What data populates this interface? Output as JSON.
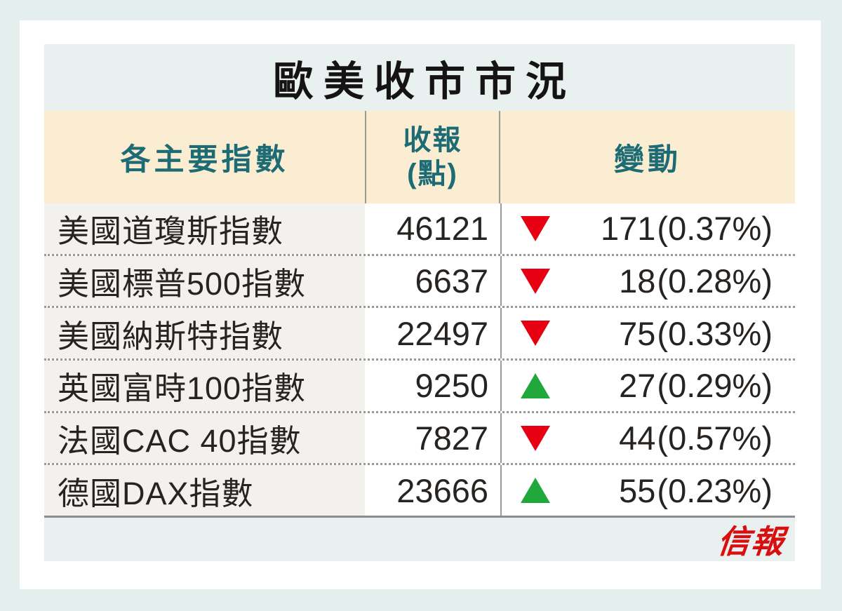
{
  "title": "歐美收市市況",
  "table": {
    "headers": {
      "index": "各主要指數",
      "close_line1": "收報",
      "close_line2": "(點)",
      "change": "變動"
    },
    "rows": [
      {
        "name": "美國道瓊斯指數",
        "close": "46121",
        "direction": "down",
        "change": "171",
        "pct": "(0.37%)"
      },
      {
        "name": "美國標普500指數",
        "close": "6637",
        "direction": "down",
        "change": "18",
        "pct": "(0.28%)"
      },
      {
        "name": "美國納斯特指數",
        "close": "22497",
        "direction": "down",
        "change": "75",
        "pct": "(0.33%)"
      },
      {
        "name": "英國富時100指數",
        "close": "9250",
        "direction": "up",
        "change": "27",
        "pct": "(0.29%)"
      },
      {
        "name": "法國CAC 40指數",
        "close": "7827",
        "direction": "down",
        "change": "44",
        "pct": "(0.57%)"
      },
      {
        "name": "德國DAX指數",
        "close": "23666",
        "direction": "up",
        "change": "55",
        "pct": "(0.23%)"
      }
    ]
  },
  "footer": {
    "logo": "信報"
  },
  "colors": {
    "page_background": "#e4eeed",
    "title_band": "#e9f1f0",
    "header_band": "#fbedd2",
    "header_text": "#1d6b74",
    "index_column_background": "#f2f1ee",
    "down_red": "#e60012",
    "up_green": "#21a83c",
    "logo_red": "#d90f0f",
    "divider_gray": "#9b9b9b",
    "text": "#262321"
  },
  "chart_data": {
    "type": "table",
    "title": "歐美收市市況",
    "columns": [
      "各主要指數",
      "收報(點)",
      "變動(點)",
      "變動(%)"
    ],
    "rows": [
      [
        "美國道瓊斯指數",
        46121,
        -171,
        -0.37
      ],
      [
        "美國標普500指數",
        6637,
        -18,
        -0.28
      ],
      [
        "美國納斯特指數",
        22497,
        -75,
        -0.33
      ],
      [
        "英國富時100指數",
        9250,
        27,
        0.29
      ],
      [
        "法國CAC 40指數",
        7827,
        -44,
        -0.57
      ],
      [
        "德國DAX指數",
        23666,
        55,
        0.23
      ]
    ],
    "legend": "triangle down = decline (red), triangle up = rise (green)"
  }
}
